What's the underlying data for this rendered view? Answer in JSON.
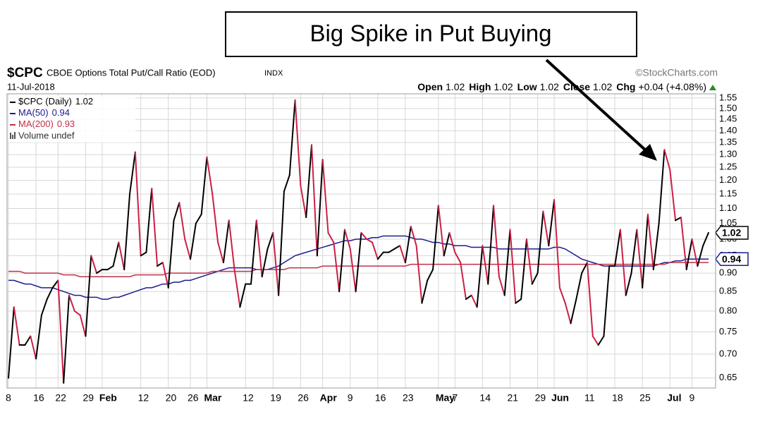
{
  "chart_data": {
    "type": "line",
    "symbol": "$CPC",
    "title": "CBOE Options Total Put/Call Ratio (EOD)",
    "exchange": "INDX",
    "watermark": "©StockCharts.com",
    "date": "11-Jul-2018",
    "quote": [
      {
        "label": "Open",
        "value": "1.02"
      },
      {
        "label": "High",
        "value": "1.02"
      },
      {
        "label": "Low",
        "value": "1.02"
      },
      {
        "label": "Close",
        "value": "1.02"
      },
      {
        "label": "Chg",
        "value": "+0.04 (+4.08%)"
      }
    ],
    "volume_legend": "Volume undef",
    "annotation": "Big Spike in Put Buying",
    "log_scale": true,
    "grid": true,
    "legend": "top-left",
    "ylim": [
      0.63,
      1.57
    ],
    "yticks": [
      0.65,
      {
        "value": 0.7,
        "label": "0.70"
      },
      0.75,
      {
        "value": 0.8,
        "label": "0.80"
      },
      0.85,
      {
        "value": 0.9,
        "label": "0.90"
      },
      0.95,
      {
        "value": 1,
        "label": "1.00"
      },
      1.05,
      {
        "value": 1.1,
        "label": "1.10"
      },
      1.15,
      {
        "value": 1.2,
        "label": "1.20"
      },
      1.25,
      {
        "value": 1.3,
        "label": "1.30"
      },
      1.35,
      {
        "value": 1.4,
        "label": "1.40"
      },
      1.45,
      {
        "value": 1.5,
        "label": "1.50"
      },
      1.55
    ],
    "categories": [
      "8",
      null,
      null,
      null,
      null,
      "16",
      null,
      null,
      null,
      "22",
      null,
      null,
      null,
      null,
      "29",
      null,
      null,
      "Feb",
      null,
      null,
      null,
      null,
      null,
      null,
      "12",
      null,
      null,
      null,
      null,
      "20",
      null,
      null,
      null,
      "26",
      null,
      null,
      "Mar",
      null,
      null,
      null,
      null,
      null,
      null,
      "12",
      null,
      null,
      null,
      null,
      "19",
      null,
      null,
      null,
      null,
      "26",
      null,
      null,
      null,
      "Apr",
      null,
      null,
      null,
      null,
      "9",
      null,
      null,
      null,
      null,
      "16",
      null,
      null,
      null,
      null,
      "23",
      null,
      null,
      null,
      null,
      null,
      "May",
      null,
      null,
      "7",
      null,
      null,
      null,
      null,
      "14",
      null,
      null,
      null,
      null,
      "21",
      null,
      null,
      null,
      null,
      "29",
      null,
      null,
      "Jun",
      null,
      null,
      null,
      null,
      null,
      "11",
      null,
      null,
      null,
      null,
      "18",
      null,
      null,
      null,
      null,
      "25",
      null,
      null,
      null,
      null,
      "Jul",
      null,
      null,
      null,
      "9",
      null,
      null,
      null
    ],
    "series": [
      {
        "name": "$CPC (Daily)",
        "up_color": "#000000",
        "down_color": "#cc1f44",
        "color": "#000000",
        "last_value_box": true,
        "values": [
          0.65,
          0.81,
          0.72,
          0.72,
          0.74,
          0.69,
          0.79,
          0.83,
          0.86,
          0.88,
          0.64,
          0.84,
          0.8,
          0.79,
          0.74,
          0.95,
          0.9,
          0.91,
          0.91,
          0.92,
          0.99,
          0.91,
          1.15,
          1.31,
          0.95,
          0.96,
          1.17,
          0.92,
          0.93,
          0.86,
          1.06,
          1.12,
          1.0,
          0.94,
          1.05,
          1.08,
          1.29,
          1.15,
          0.99,
          0.93,
          1.06,
          0.91,
          0.81,
          0.87,
          0.87,
          1.06,
          0.89,
          0.97,
          1.02,
          0.84,
          1.16,
          1.22,
          1.54,
          1.18,
          1.07,
          1.34,
          0.95,
          1.28,
          1.02,
          0.99,
          0.85,
          1.03,
          0.97,
          0.85,
          1.02,
          1.0,
          0.99,
          0.94,
          0.96,
          0.96,
          0.97,
          0.98,
          0.93,
          1.04,
          0.98,
          0.82,
          0.88,
          0.91,
          1.11,
          0.95,
          1.02,
          0.96,
          0.93,
          0.83,
          0.84,
          0.81,
          0.98,
          0.87,
          1.11,
          0.89,
          0.84,
          1.03,
          0.82,
          0.83,
          1.0,
          0.87,
          0.9,
          1.09,
          0.98,
          1.13,
          0.86,
          0.82,
          0.77,
          0.83,
          0.9,
          0.93,
          0.74,
          0.72,
          0.74,
          0.92,
          0.92,
          1.03,
          0.84,
          0.9,
          1.03,
          0.86,
          1.08,
          0.91,
          1.05,
          1.32,
          1.24,
          1.06,
          1.07,
          0.91,
          1.0,
          0.92,
          0.98,
          1.02
        ]
      },
      {
        "name": "MA(50)",
        "color": "#1c1c8c",
        "last_value_box": true,
        "values": [
          0.88,
          0.88,
          0.875,
          0.87,
          0.87,
          0.865,
          0.86,
          0.86,
          0.86,
          0.855,
          0.85,
          0.845,
          0.84,
          0.84,
          0.835,
          0.835,
          0.835,
          0.83,
          0.83,
          0.835,
          0.835,
          0.84,
          0.845,
          0.85,
          0.855,
          0.86,
          0.86,
          0.865,
          0.87,
          0.87,
          0.875,
          0.875,
          0.88,
          0.88,
          0.885,
          0.89,
          0.895,
          0.9,
          0.905,
          0.91,
          0.915,
          0.915,
          0.915,
          0.915,
          0.915,
          0.91,
          0.91,
          0.91,
          0.915,
          0.92,
          0.93,
          0.94,
          0.95,
          0.955,
          0.96,
          0.965,
          0.97,
          0.975,
          0.98,
          0.985,
          0.99,
          0.995,
          0.995,
          1.0,
          1.0,
          1.0,
          1.005,
          1.005,
          1.01,
          1.01,
          1.01,
          1.01,
          1.01,
          1.005,
          1.0,
          1.0,
          0.995,
          0.99,
          0.99,
          0.985,
          0.985,
          0.98,
          0.98,
          0.98,
          0.975,
          0.975,
          0.975,
          0.975,
          0.975,
          0.97,
          0.97,
          0.97,
          0.97,
          0.97,
          0.97,
          0.97,
          0.97,
          0.97,
          0.97,
          0.975,
          0.975,
          0.97,
          0.96,
          0.95,
          0.94,
          0.935,
          0.93,
          0.925,
          0.92,
          0.92,
          0.92,
          0.92,
          0.92,
          0.92,
          0.92,
          0.92,
          0.92,
          0.92,
          0.925,
          0.93,
          0.93,
          0.935,
          0.935,
          0.94,
          0.94,
          0.94,
          0.94,
          0.94
        ]
      },
      {
        "name": "MA(200)",
        "color": "#c0304a",
        "last_value_box": false,
        "values": [
          0.905,
          0.905,
          0.905,
          0.9,
          0.9,
          0.9,
          0.9,
          0.9,
          0.9,
          0.9,
          0.895,
          0.895,
          0.895,
          0.89,
          0.89,
          0.89,
          0.89,
          0.89,
          0.89,
          0.89,
          0.89,
          0.89,
          0.89,
          0.895,
          0.895,
          0.895,
          0.895,
          0.895,
          0.895,
          0.9,
          0.9,
          0.9,
          0.9,
          0.9,
          0.9,
          0.9,
          0.9,
          0.905,
          0.905,
          0.905,
          0.905,
          0.905,
          0.905,
          0.905,
          0.905,
          0.91,
          0.91,
          0.91,
          0.91,
          0.91,
          0.91,
          0.915,
          0.915,
          0.915,
          0.915,
          0.915,
          0.915,
          0.92,
          0.92,
          0.92,
          0.92,
          0.92,
          0.92,
          0.92,
          0.92,
          0.92,
          0.92,
          0.92,
          0.92,
          0.92,
          0.92,
          0.92,
          0.92,
          0.925,
          0.925,
          0.925,
          0.925,
          0.925,
          0.925,
          0.925,
          0.925,
          0.925,
          0.925,
          0.925,
          0.925,
          0.925,
          0.925,
          0.925,
          0.925,
          0.925,
          0.925,
          0.925,
          0.925,
          0.925,
          0.925,
          0.925,
          0.925,
          0.925,
          0.925,
          0.925,
          0.925,
          0.925,
          0.925,
          0.925,
          0.925,
          0.925,
          0.925,
          0.925,
          0.925,
          0.925,
          0.925,
          0.925,
          0.925,
          0.925,
          0.925,
          0.925,
          0.925,
          0.925,
          0.925,
          0.925,
          0.93,
          0.93,
          0.93,
          0.93,
          0.93,
          0.93,
          0.93,
          0.93
        ]
      }
    ]
  }
}
